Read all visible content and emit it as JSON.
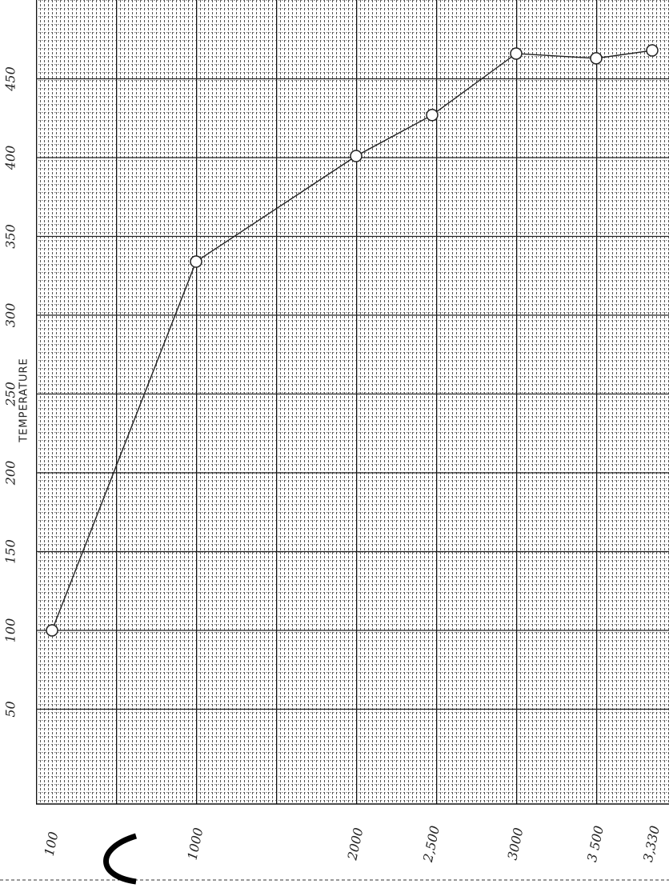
{
  "chart_data": {
    "type": "line",
    "y_label": "TEMPERATURE",
    "categories": [
      "100",
      "1000",
      "2000",
      "2,500",
      "3000",
      "3 500",
      "3,330"
    ],
    "values": [
      100,
      334,
      401,
      427,
      466,
      463,
      468
    ],
    "color": "#222222",
    "ylim": [
      0,
      500
    ],
    "yticks": [
      50,
      100,
      150,
      200,
      250,
      300,
      350,
      400,
      450
    ],
    "grid": true
  }
}
